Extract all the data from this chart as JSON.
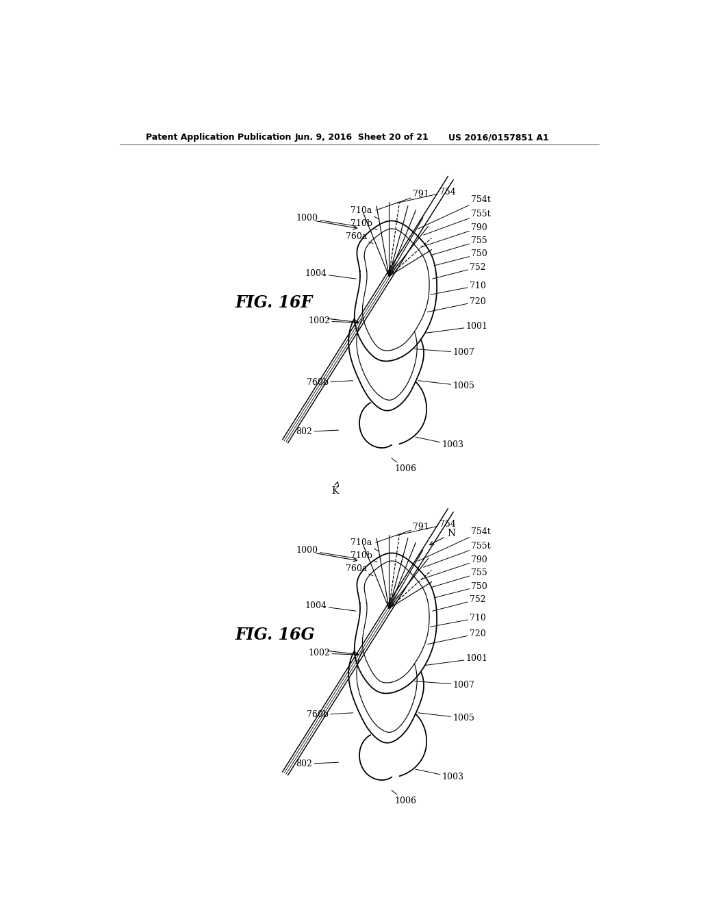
{
  "header_left": "Patent Application Publication",
  "header_mid": "Jun. 9, 2016  Sheet 20 of 21",
  "header_right": "US 2016/0157851 A1",
  "fig_top_label": "FIG. 16F",
  "fig_bot_label": "FIG. 16G",
  "background": "#ffffff",
  "line_color": "#000000",
  "header_font_size": 9,
  "fig_label_font_size": 17,
  "annotation_font_size": 9
}
